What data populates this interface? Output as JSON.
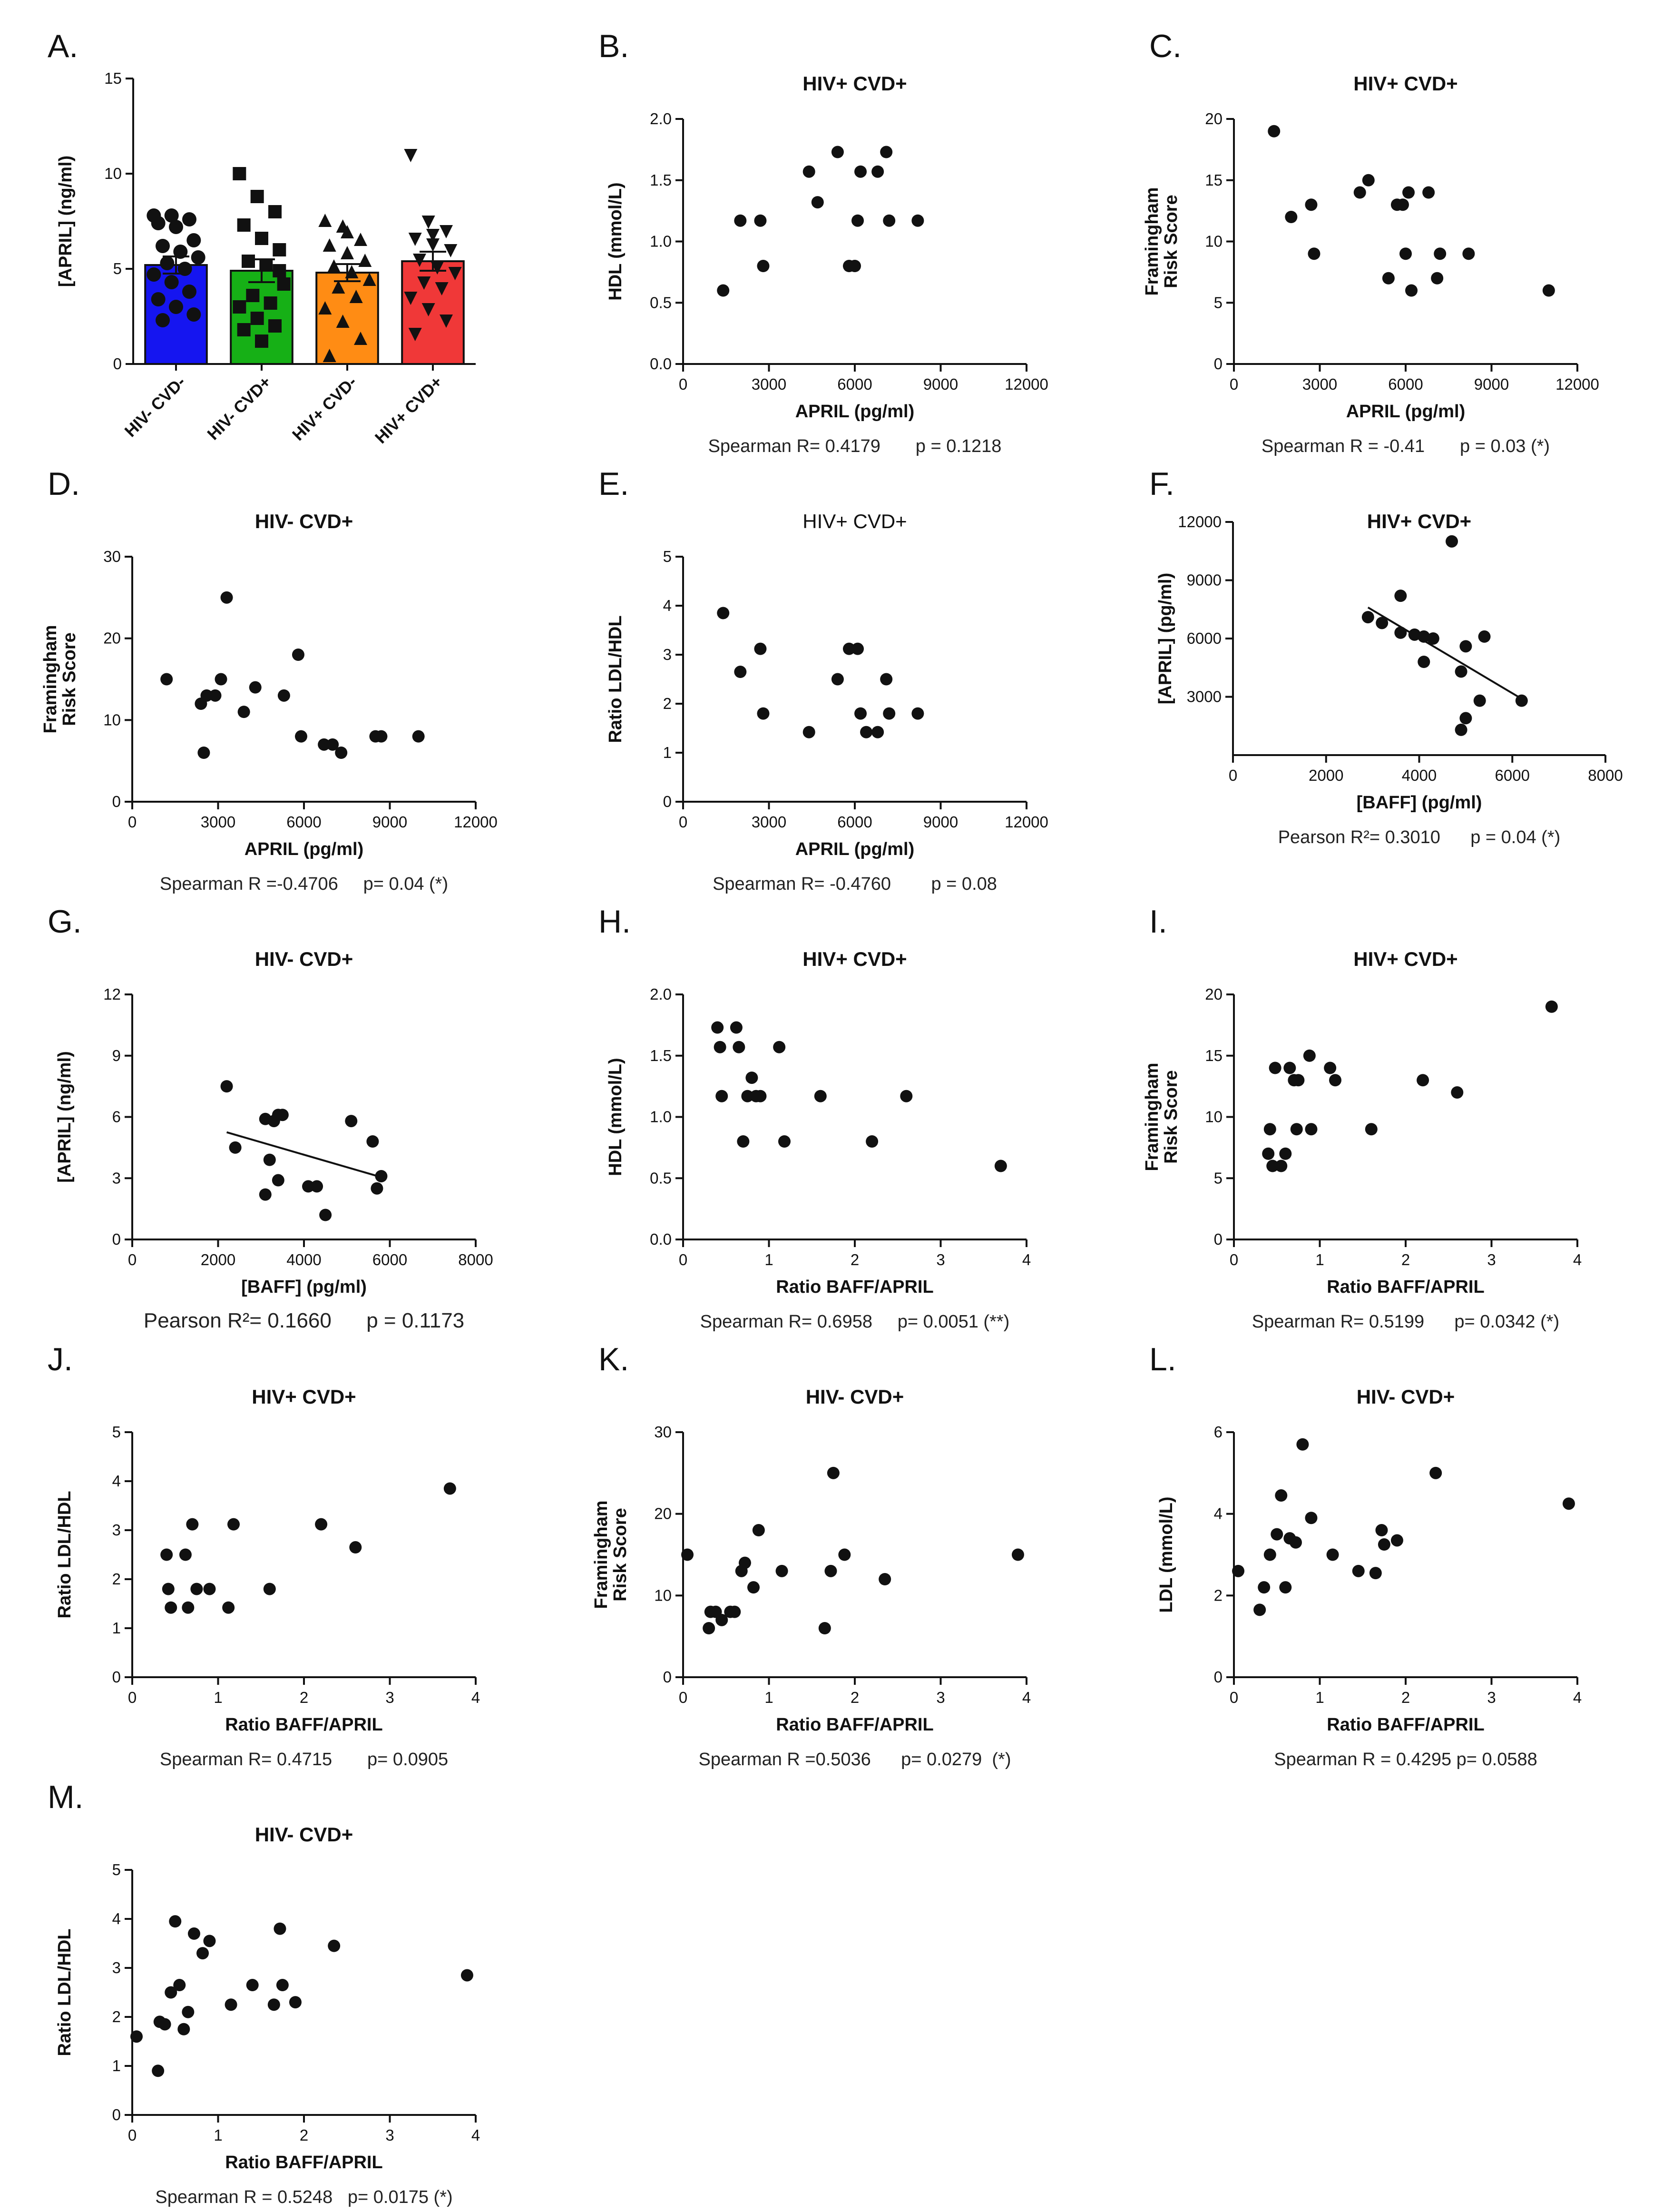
{
  "chart_data": [
    {
      "id": "A",
      "letter": "A.",
      "type": "bar",
      "title": "",
      "xlabel": "",
      "ylabel": "[APRIL]  (ng/ml)",
      "ylim": [
        0,
        15
      ],
      "yticks": [
        "0",
        "5",
        "10",
        "15"
      ],
      "categories": [
        "HIV- CVD-",
        "HIV- CVD+",
        "HIV+ CVD-",
        "HIV+ CVD+"
      ],
      "values": [
        5.2,
        4.9,
        4.8,
        5.4
      ],
      "errors": [
        0.45,
        0.6,
        0.45,
        0.5
      ],
      "colors": [
        "#1515f0",
        "#16b016",
        "#ff8c14",
        "#f03838"
      ],
      "marker_shapes": [
        "circle",
        "square",
        "triangle-up",
        "triangle-down"
      ],
      "points": [
        [
          7.8,
          7.8,
          7.6,
          7.4,
          7.2,
          6.5,
          6.2,
          5.9,
          5.6,
          5.3,
          5.0,
          4.7,
          4.3,
          3.8,
          3.4,
          3.0,
          2.6,
          2.3
        ],
        [
          10.0,
          8.8,
          8.0,
          7.3,
          6.6,
          6.0,
          5.4,
          5.2,
          4.2,
          3.6,
          3.2,
          3.0,
          2.4,
          2.0,
          1.8,
          1.2,
          4.9
        ],
        [
          7.5,
          7.2,
          6.5,
          6.2,
          5.8,
          5.4,
          5.1,
          4.8,
          4.4,
          4.0,
          3.5,
          2.9,
          2.2,
          1.3,
          0.4,
          6.9
        ],
        [
          11.0,
          7.5,
          7.0,
          6.6,
          6.3,
          6.0,
          5.5,
          5.1,
          4.8,
          4.3,
          4.0,
          3.5,
          2.9,
          2.3,
          1.6,
          6.8
        ]
      ]
    },
    {
      "id": "B",
      "letter": "B.",
      "type": "scatter",
      "title": "HIV+ CVD+",
      "xlabel": "APRIL (pg/ml)",
      "ylabel": "HDL (mmol/L)",
      "xlim": [
        0,
        12000
      ],
      "ylim": [
        0,
        2
      ],
      "xticks": [
        "0",
        "3000",
        "6000",
        "9000",
        "12000"
      ],
      "yticks": [
        "0.0",
        "0.5",
        "1.0",
        "1.5",
        "2.0"
      ],
      "x": [
        1400,
        2000,
        2700,
        2800,
        4400,
        4700,
        5400,
        5800,
        6000,
        6100,
        6200,
        6800,
        7100,
        7200,
        8200
      ],
      "y": [
        0.6,
        1.17,
        1.17,
        0.8,
        1.57,
        1.32,
        1.73,
        0.8,
        0.8,
        1.17,
        1.57,
        1.57,
        1.73,
        1.17,
        1.17
      ],
      "stat": "Spearman R= 0.4179       p = 0.1218"
    },
    {
      "id": "C",
      "letter": "C.",
      "type": "scatter",
      "title": "HIV+ CVD+",
      "xlabel": "APRIL (pg/ml)",
      "ylabel": "Framingham|Risk Score",
      "xlim": [
        0,
        12000
      ],
      "ylim": [
        0,
        20
      ],
      "xticks": [
        "0",
        "3000",
        "6000",
        "9000",
        "12000"
      ],
      "yticks": [
        "0",
        "5",
        "10",
        "15",
        "20"
      ],
      "x": [
        1400,
        2000,
        2700,
        2800,
        4400,
        4700,
        5400,
        5700,
        5900,
        6000,
        6100,
        6200,
        6800,
        7100,
        7200,
        8200,
        11000
      ],
      "y": [
        19,
        12,
        13,
        9,
        14,
        15,
        7,
        13,
        13,
        9,
        14,
        6,
        14,
        7,
        9,
        9,
        6
      ],
      "stat": "Spearman R = -0.41       p = 0.03 (*)"
    },
    {
      "id": "D",
      "letter": "D.",
      "type": "scatter",
      "title": "HIV- CVD+",
      "xlabel": "APRIL (pg/ml)",
      "ylabel": "Framingham|Risk Score",
      "xlim": [
        0,
        12000
      ],
      "ylim": [
        0,
        30
      ],
      "xticks": [
        "0",
        "3000",
        "6000",
        "9000",
        "12000"
      ],
      "yticks": [
        "0",
        "10",
        "20",
        "30"
      ],
      "x": [
        1200,
        2400,
        2500,
        2600,
        2900,
        3100,
        3300,
        3900,
        4300,
        5300,
        5800,
        5900,
        6700,
        7000,
        7300,
        8500,
        8700,
        10000
      ],
      "y": [
        15,
        12,
        6,
        13,
        13,
        15,
        25,
        11,
        14,
        13,
        18,
        8,
        7,
        7,
        6,
        8,
        8,
        8
      ],
      "stat": "Spearman R =-0.4706     p= 0.04 (*)"
    },
    {
      "id": "E",
      "letter": "E.",
      "type": "scatter",
      "title": "HIV+ CVD+",
      "title_weight": "normal",
      "xlabel": "APRIL (pg/ml)",
      "ylabel": "Ratio LDL/HDL",
      "xlim": [
        0,
        12000
      ],
      "ylim": [
        0,
        5
      ],
      "xticks": [
        "0",
        "3000",
        "6000",
        "9000",
        "12000"
      ],
      "yticks": [
        "0",
        "1",
        "2",
        "3",
        "4",
        "5"
      ],
      "x": [
        1400,
        2000,
        2700,
        2800,
        4400,
        5400,
        5800,
        6100,
        6200,
        6400,
        6800,
        7100,
        7200,
        8200
      ],
      "y": [
        3.85,
        2.65,
        3.12,
        1.8,
        1.42,
        2.5,
        3.12,
        3.12,
        1.8,
        1.42,
        1.42,
        2.5,
        1.8,
        1.8
      ],
      "stat": "Spearman R= -0.4760        p = 0.08"
    },
    {
      "id": "F",
      "letter": "F.",
      "type": "scatter",
      "title": "HIV+ CVD+",
      "xlabel": "[BAFF] (pg/ml)",
      "ylabel": "[APRIL]  (pg/ml)",
      "xlim": [
        0,
        8000
      ],
      "ylim": [
        0,
        12000
      ],
      "xticks": [
        "0",
        "2000",
        "4000",
        "6000",
        "8000"
      ],
      "yticks": [
        "3000",
        "6000",
        "9000",
        "12000"
      ],
      "x": [
        2900,
        3200,
        3600,
        3600,
        3900,
        4100,
        4100,
        4300,
        4700,
        4900,
        4900,
        5000,
        5000,
        5300,
        5400,
        6200
      ],
      "y": [
        7100,
        6800,
        8200,
        6300,
        6200,
        4800,
        6100,
        6000,
        11000,
        4300,
        1300,
        1900,
        5600,
        2800,
        6100,
        2800
      ],
      "fit": [
        [
          2900,
          7600
        ],
        [
          6200,
          2900
        ]
      ],
      "stat": "Pearson R²= 0.3010      p = 0.04 (*)"
    },
    {
      "id": "G",
      "letter": "G.",
      "type": "scatter",
      "title": "HIV- CVD+",
      "xlabel": "[BAFF] (pg/ml)",
      "ylabel": "[APRIL]  (ng/ml)",
      "xlim": [
        0,
        8000
      ],
      "ylim": [
        0,
        12
      ],
      "xticks": [
        "0",
        "2000",
        "4000",
        "6000",
        "8000"
      ],
      "yticks": [
        "0",
        "3",
        "6",
        "9",
        "12"
      ],
      "x": [
        2200,
        2400,
        3100,
        3100,
        3200,
        3300,
        3400,
        3400,
        3500,
        4100,
        4300,
        4500,
        5100,
        5600,
        5700,
        5800
      ],
      "y": [
        7.5,
        4.5,
        5.9,
        2.2,
        3.9,
        5.8,
        6.1,
        2.9,
        6.1,
        2.6,
        2.6,
        1.2,
        5.8,
        4.8,
        2.5,
        3.1
      ],
      "fit": [
        [
          2200,
          5.25
        ],
        [
          5800,
          3.05
        ]
      ],
      "stat": "Pearson R²= 0.1660      p = 0.1173",
      "stat_size": "big"
    },
    {
      "id": "H",
      "letter": "H.",
      "type": "scatter",
      "title": "HIV+ CVD+",
      "xlabel": "Ratio BAFF/APRIL",
      "ylabel": "HDL (mmol/L)",
      "xlim": [
        0,
        4
      ],
      "ylim": [
        0,
        2
      ],
      "xticks": [
        "0",
        "1",
        "2",
        "3",
        "4"
      ],
      "yticks": [
        "0.0",
        "0.5",
        "1.0",
        "1.5",
        "2.0"
      ],
      "x": [
        0.4,
        0.43,
        0.45,
        0.62,
        0.65,
        0.7,
        0.75,
        0.8,
        0.85,
        0.9,
        1.12,
        1.18,
        1.6,
        2.2,
        2.6,
        3.7
      ],
      "y": [
        1.73,
        1.57,
        1.17,
        1.73,
        1.57,
        0.8,
        1.17,
        1.32,
        1.17,
        1.17,
        1.57,
        0.8,
        1.17,
        0.8,
        1.17,
        0.6
      ],
      "stat": "Spearman R= 0.6958     p= 0.0051 (**)"
    },
    {
      "id": "I",
      "letter": "I.",
      "type": "scatter",
      "title": "HIV+ CVD+",
      "xlabel": "Ratio BAFF/APRIL",
      "ylabel": "Framingham|Risk Score",
      "xlim": [
        0,
        4
      ],
      "ylim": [
        0,
        20
      ],
      "xticks": [
        "0",
        "1",
        "2",
        "3",
        "4"
      ],
      "yticks": [
        "0",
        "5",
        "10",
        "15",
        "20"
      ],
      "x": [
        0.4,
        0.42,
        0.45,
        0.48,
        0.55,
        0.6,
        0.65,
        0.7,
        0.73,
        0.75,
        0.88,
        0.9,
        1.12,
        1.18,
        1.6,
        2.2,
        2.6,
        3.7
      ],
      "y": [
        7,
        9,
        6,
        14,
        6,
        7,
        14,
        13,
        9,
        13,
        15,
        9,
        14,
        13,
        9,
        13,
        12,
        19
      ],
      "stat": "Spearman R= 0.5199      p= 0.0342 (*)"
    },
    {
      "id": "J",
      "letter": "J.",
      "type": "scatter",
      "title": "HIV+ CVD+",
      "xlabel": "Ratio BAFF/APRIL",
      "ylabel": "Ratio LDL/HDL",
      "xlim": [
        0,
        4
      ],
      "ylim": [
        0,
        5
      ],
      "xticks": [
        "0",
        "1",
        "2",
        "3",
        "4"
      ],
      "yticks": [
        "0",
        "1",
        "2",
        "3",
        "4",
        "5"
      ],
      "x": [
        0.4,
        0.42,
        0.45,
        0.62,
        0.65,
        0.7,
        0.75,
        0.9,
        1.12,
        1.18,
        1.6,
        2.2,
        2.6,
        3.7
      ],
      "y": [
        2.5,
        1.8,
        1.42,
        2.5,
        1.42,
        3.12,
        1.8,
        1.8,
        1.42,
        3.12,
        1.8,
        3.12,
        2.65,
        3.85
      ],
      "stat": "Spearman R= 0.4715       p= 0.0905"
    },
    {
      "id": "K",
      "letter": "K.",
      "type": "scatter",
      "title": "HIV- CVD+",
      "xlabel": "Ratio BAFF/APRIL",
      "ylabel": "Framingham|Risk Score",
      "xlim": [
        0,
        4
      ],
      "ylim": [
        0,
        30
      ],
      "xticks": [
        "0",
        "1",
        "2",
        "3",
        "4"
      ],
      "yticks": [
        "0",
        "10",
        "20",
        "30"
      ],
      "x": [
        0.05,
        0.3,
        0.32,
        0.38,
        0.45,
        0.55,
        0.6,
        0.68,
        0.72,
        0.82,
        0.88,
        1.15,
        1.65,
        1.72,
        1.75,
        1.88,
        2.35,
        3.9
      ],
      "y": [
        15,
        6,
        8,
        8,
        7,
        8,
        8,
        13,
        14,
        11,
        18,
        13,
        6,
        13,
        25,
        15,
        12,
        15
      ],
      "stat": "Spearman R =0.5036      p= 0.0279  (*)"
    },
    {
      "id": "L",
      "letter": "L.",
      "type": "scatter",
      "title": "HIV- CVD+",
      "xlabel": "Ratio BAFF/APRIL",
      "ylabel": "LDL (mmol/L)",
      "xlim": [
        0,
        4
      ],
      "ylim": [
        0,
        6
      ],
      "xticks": [
        "0",
        "1",
        "2",
        "3",
        "4"
      ],
      "yticks": [
        "0",
        "2",
        "4",
        "6"
      ],
      "x": [
        0.05,
        0.3,
        0.35,
        0.42,
        0.5,
        0.55,
        0.6,
        0.65,
        0.72,
        0.8,
        0.9,
        1.15,
        1.45,
        1.65,
        1.72,
        1.75,
        1.9,
        2.35,
        3.9
      ],
      "y": [
        2.6,
        1.65,
        2.2,
        3.0,
        3.5,
        4.45,
        2.2,
        3.4,
        3.3,
        5.7,
        3.9,
        3.0,
        2.6,
        2.55,
        3.6,
        3.25,
        3.35,
        5.0,
        4.25
      ],
      "stat": "Spearman R = 0.4295 p= 0.0588"
    },
    {
      "id": "M",
      "letter": "M.",
      "type": "scatter",
      "title": "HIV- CVD+",
      "xlabel": "Ratio BAFF/APRIL",
      "ylabel": "Ratio LDL/HDL",
      "xlim": [
        0,
        4
      ],
      "ylim": [
        0,
        5
      ],
      "xticks": [
        "0",
        "1",
        "2",
        "3",
        "4"
      ],
      "yticks": [
        "0",
        "1",
        "2",
        "3",
        "4",
        "5"
      ],
      "x": [
        0.05,
        0.3,
        0.32,
        0.38,
        0.45,
        0.5,
        0.55,
        0.6,
        0.65,
        0.72,
        0.82,
        0.9,
        1.15,
        1.4,
        1.65,
        1.72,
        1.75,
        1.9,
        2.35,
        3.9
      ],
      "y": [
        1.6,
        0.9,
        1.9,
        1.85,
        2.5,
        3.95,
        2.65,
        1.75,
        2.1,
        3.7,
        3.3,
        3.55,
        2.25,
        2.65,
        2.25,
        3.8,
        2.65,
        2.3,
        3.45,
        2.85
      ],
      "stat": "Spearman R = 0.5248   p= 0.0175 (*)"
    }
  ]
}
